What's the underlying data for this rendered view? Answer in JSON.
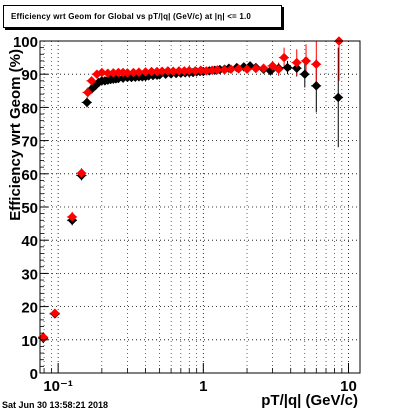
{
  "title": "Efficiency wrt Geom for Global vs pT/|q| (GeV/c) at |η| <= 1.0",
  "timestamp": "Sat Jun 30 13:58:21 2018",
  "chart_data": {
    "type": "scatter",
    "xlabel": "pT/|q| (GeV/c)",
    "ylabel": "Efficiency wrt Geom (%)",
    "xscale": "log",
    "xlim": [
      0.075,
      12
    ],
    "ylim": [
      0,
      100
    ],
    "grid": true,
    "xticks": [
      {
        "value": 0.1,
        "label": "10⁻¹"
      },
      {
        "value": 1,
        "label": "1"
      },
      {
        "value": 10,
        "label": "10"
      }
    ],
    "yticks": [
      0,
      10,
      20,
      30,
      40,
      50,
      60,
      70,
      80,
      90,
      100
    ],
    "series": [
      {
        "color": "#000000",
        "marker": "diamond",
        "points": [
          [
            0.079,
            10.5
          ],
          [
            0.095,
            17.8
          ],
          [
            0.125,
            46.0
          ],
          [
            0.145,
            59.5
          ],
          [
            0.158,
            81.5
          ],
          [
            0.17,
            85.5
          ],
          [
            0.18,
            86.5
          ],
          [
            0.19,
            87.5
          ],
          [
            0.2,
            88.0
          ],
          [
            0.21,
            88.0
          ],
          [
            0.22,
            88.2
          ],
          [
            0.23,
            88.4
          ],
          [
            0.24,
            88.5
          ],
          [
            0.25,
            88.6
          ],
          [
            0.26,
            88.7
          ],
          [
            0.28,
            88.8
          ],
          [
            0.3,
            89.0
          ],
          [
            0.32,
            89.0
          ],
          [
            0.34,
            89.1
          ],
          [
            0.36,
            89.2
          ],
          [
            0.38,
            89.2
          ],
          [
            0.4,
            89.3
          ],
          [
            0.42,
            89.5
          ],
          [
            0.45,
            89.6
          ],
          [
            0.48,
            89.7
          ],
          [
            0.5,
            89.8
          ],
          [
            0.55,
            90.0
          ],
          [
            0.6,
            90.1
          ],
          [
            0.65,
            90.2
          ],
          [
            0.7,
            90.3
          ],
          [
            0.75,
            90.4
          ],
          [
            0.8,
            90.5
          ],
          [
            0.85,
            90.5
          ],
          [
            0.9,
            90.7
          ],
          [
            0.95,
            90.8
          ],
          [
            1.0,
            90.8
          ],
          [
            1.1,
            91.0
          ],
          [
            1.2,
            91.2
          ],
          [
            1.3,
            91.4
          ],
          [
            1.4,
            91.5
          ],
          [
            1.5,
            91.8
          ],
          [
            1.7,
            92.0
          ],
          [
            1.9,
            92.2
          ],
          [
            2.1,
            92.5
          ],
          [
            2.3,
            92.0
          ],
          [
            2.6,
            91.5
          ],
          [
            2.9,
            91.0
          ],
          [
            3.3,
            91.8
          ],
          [
            3.8,
            92.0
          ],
          [
            4.4,
            91.8
          ],
          [
            5.0,
            90.0
          ],
          [
            6.0,
            86.5
          ],
          [
            8.5,
            83.0
          ]
        ],
        "yerr": [
          1.5,
          1.2,
          1.5,
          1.5,
          1.5,
          1.2,
          1.0,
          1.0,
          0.8,
          0.8,
          0.8,
          0.8,
          0.8,
          0.8,
          0.8,
          0.8,
          0.8,
          0.8,
          0.8,
          0.8,
          0.8,
          0.8,
          0.8,
          0.8,
          0.8,
          0.8,
          0.8,
          0.8,
          0.8,
          0.8,
          0.8,
          0.8,
          0.8,
          0.8,
          0.8,
          0.8,
          0.8,
          0.8,
          0.8,
          0.8,
          0.8,
          0.8,
          0.9,
          1.0,
          1.0,
          1.2,
          1.3,
          1.5,
          2.0,
          2.5,
          4.0,
          8.0,
          15.0
        ]
      },
      {
        "color": "#ff0000",
        "marker": "diamond",
        "points": [
          [
            0.079,
            10.8
          ],
          [
            0.095,
            18.0
          ],
          [
            0.125,
            47.0
          ],
          [
            0.145,
            60.2
          ],
          [
            0.16,
            84.5
          ],
          [
            0.17,
            88.0
          ],
          [
            0.185,
            90.0
          ],
          [
            0.2,
            90.5
          ],
          [
            0.22,
            90.3
          ],
          [
            0.24,
            90.4
          ],
          [
            0.26,
            90.5
          ],
          [
            0.28,
            90.5
          ],
          [
            0.3,
            90.4
          ],
          [
            0.33,
            90.5
          ],
          [
            0.36,
            90.6
          ],
          [
            0.4,
            90.7
          ],
          [
            0.44,
            90.8
          ],
          [
            0.48,
            90.8
          ],
          [
            0.52,
            90.9
          ],
          [
            0.57,
            91.0
          ],
          [
            0.62,
            90.9
          ],
          [
            0.68,
            91.0
          ],
          [
            0.74,
            91.0
          ],
          [
            0.8,
            91.1
          ],
          [
            0.88,
            91.0
          ],
          [
            0.96,
            91.2
          ],
          [
            1.05,
            91.0
          ],
          [
            1.15,
            91.2
          ],
          [
            1.25,
            91.3
          ],
          [
            1.4,
            91.3
          ],
          [
            1.55,
            91.5
          ],
          [
            1.75,
            91.6
          ],
          [
            2.0,
            91.5
          ],
          [
            2.3,
            91.7
          ],
          [
            2.6,
            91.8
          ],
          [
            3.0,
            92.5
          ],
          [
            3.3,
            91.5
          ],
          [
            3.6,
            95.0
          ],
          [
            4.4,
            93.5
          ],
          [
            5.1,
            94.0
          ],
          [
            6.0,
            93.0
          ],
          [
            8.6,
            100.0
          ]
        ],
        "yerr": [
          1.5,
          1.2,
          1.5,
          1.5,
          1.5,
          1.2,
          1.0,
          0.8,
          0.8,
          0.8,
          0.8,
          0.8,
          0.8,
          0.8,
          0.8,
          0.8,
          0.8,
          0.8,
          0.8,
          0.8,
          0.8,
          0.8,
          0.8,
          0.8,
          0.8,
          0.8,
          0.8,
          0.8,
          0.8,
          0.8,
          0.9,
          0.9,
          1.0,
          1.0,
          1.2,
          1.5,
          2.0,
          3.0,
          4.0,
          5.0,
          7.0,
          12.0
        ]
      }
    ]
  }
}
